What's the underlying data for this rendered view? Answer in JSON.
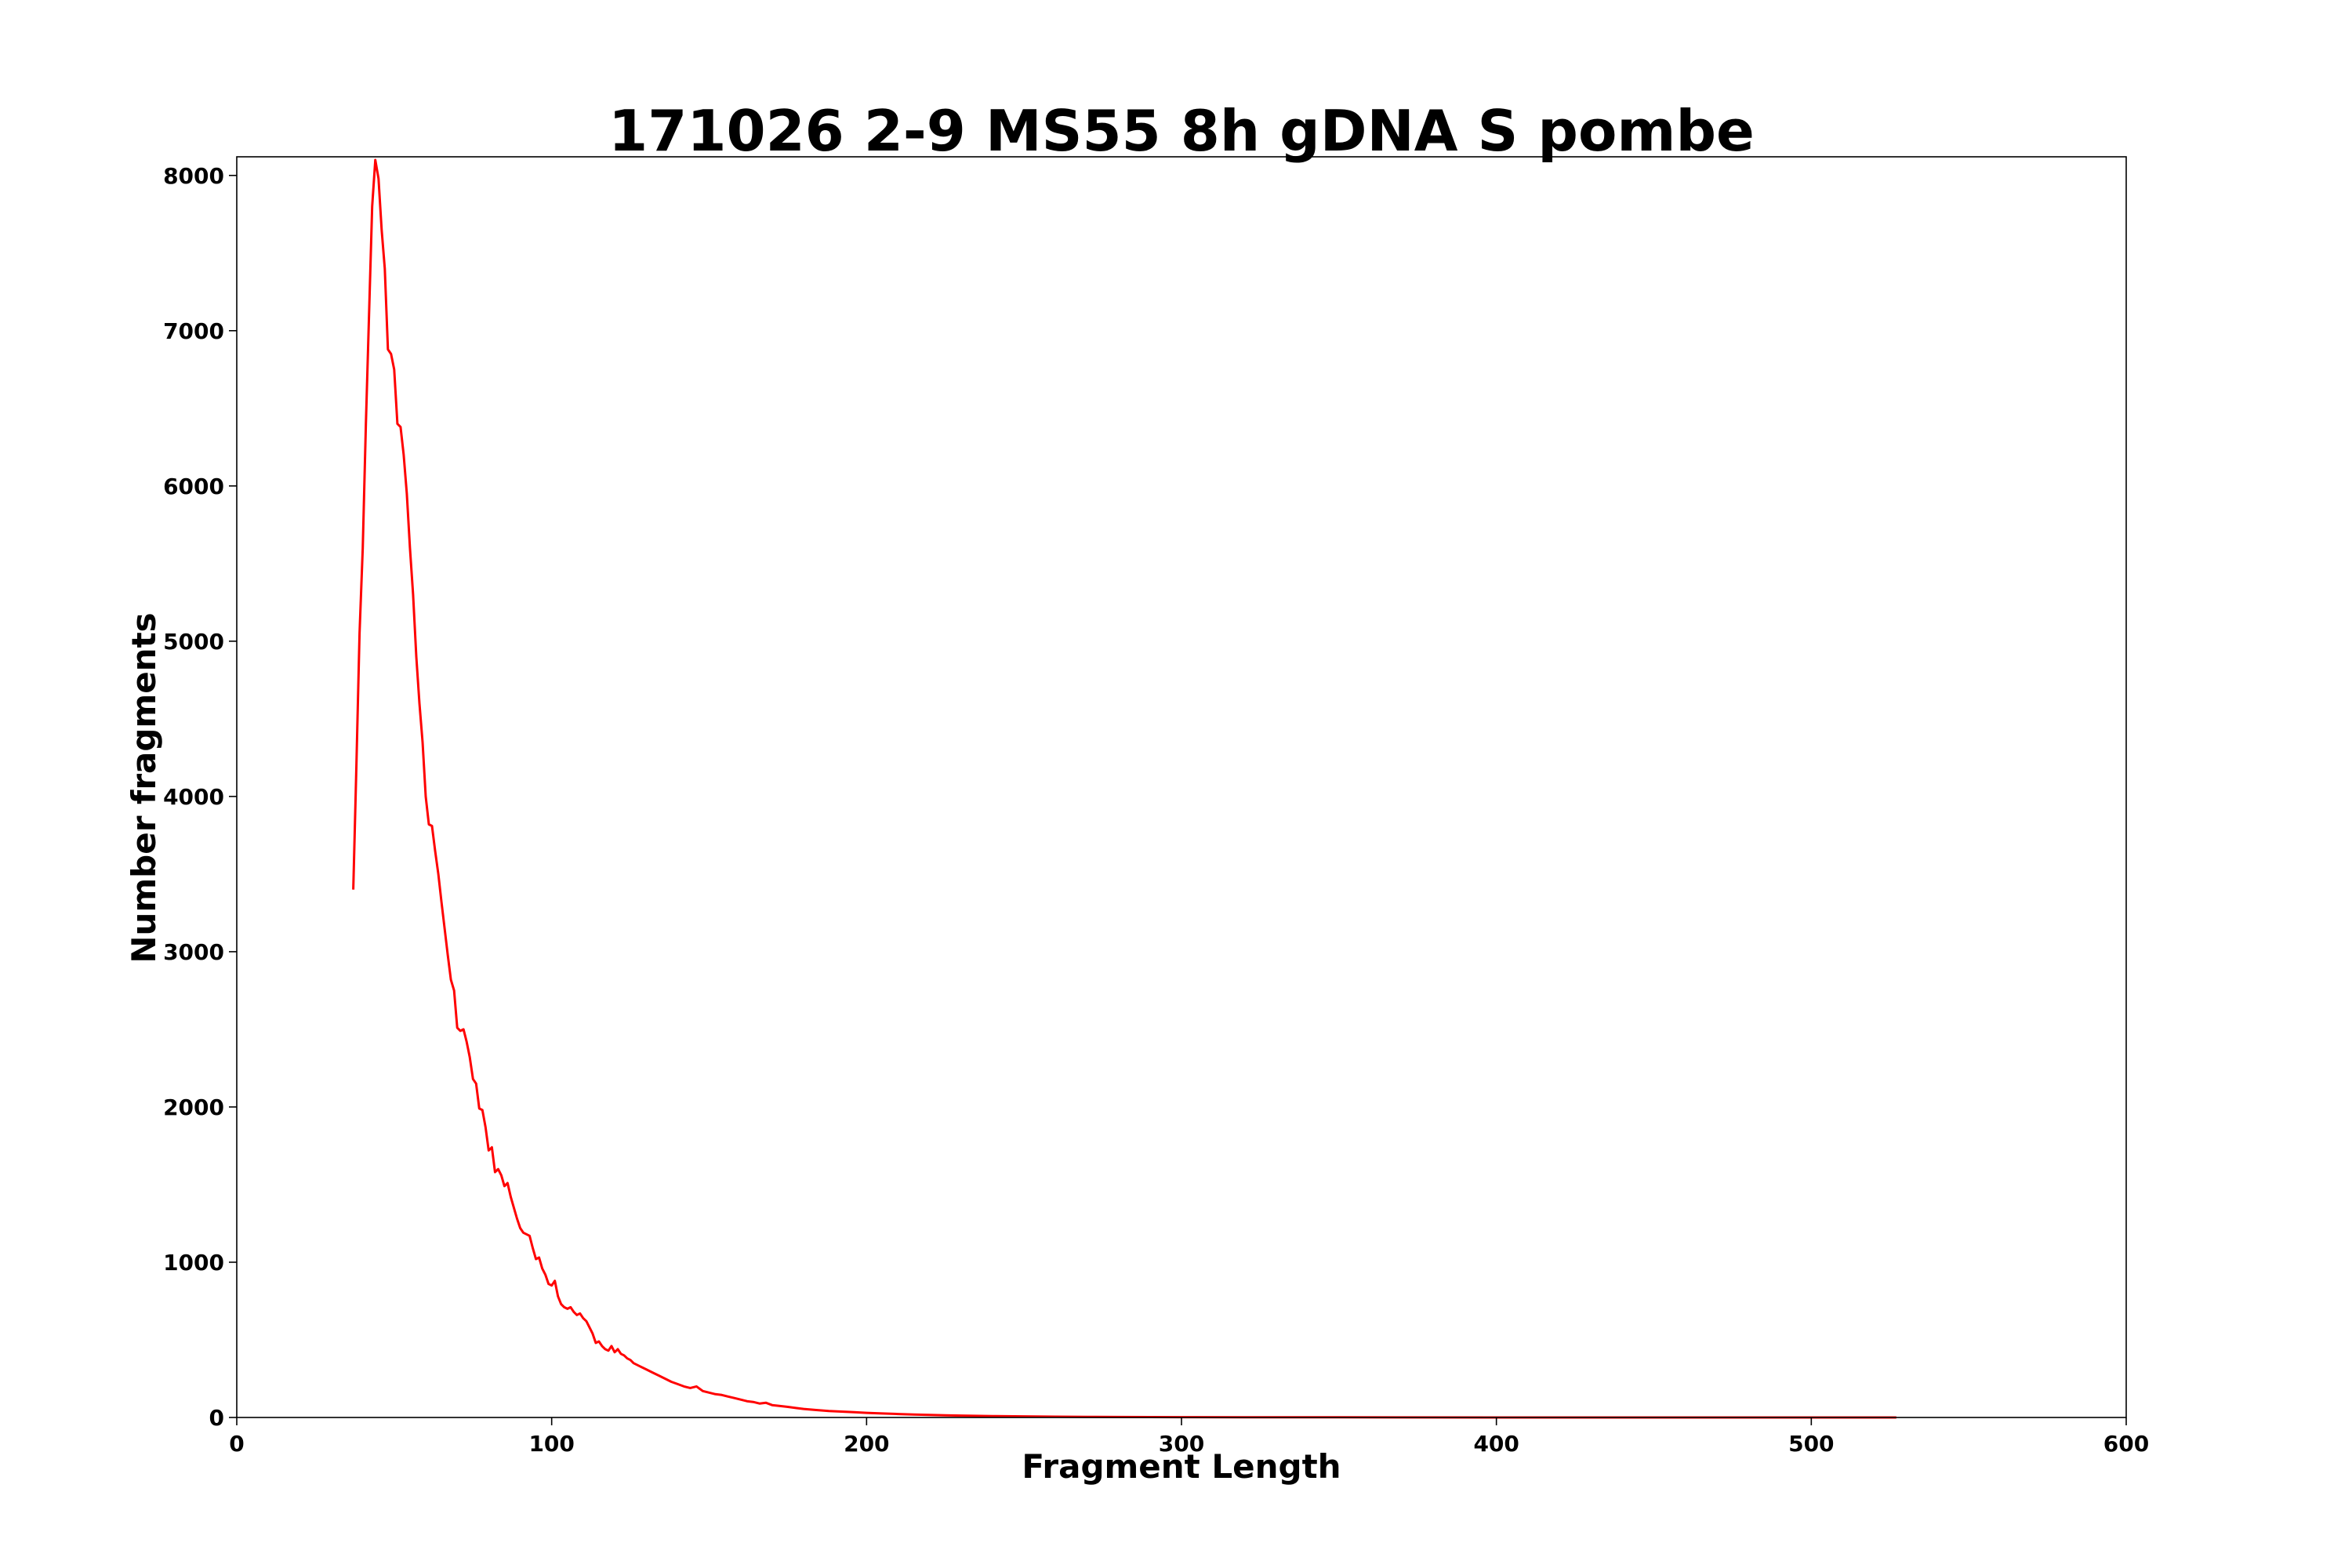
{
  "chart_data": {
    "type": "line",
    "title": "171026 2-9 MS55 8h gDNA S pombe",
    "xlabel": "Fragment Length",
    "ylabel": "Number fragments",
    "xlim": [
      0,
      600
    ],
    "ylim": [
      0,
      8120
    ],
    "xticks": [
      0,
      100,
      200,
      300,
      400,
      500,
      600
    ],
    "yticks": [
      0,
      1000,
      2000,
      3000,
      4000,
      5000,
      6000,
      7000,
      8000
    ],
    "grid": false,
    "legend": "none",
    "series": [
      {
        "color": "#ff0000",
        "points": [
          [
            37,
            3400
          ],
          [
            38,
            4200
          ],
          [
            39,
            5050
          ],
          [
            40,
            5600
          ],
          [
            41,
            6400
          ],
          [
            42,
            7100
          ],
          [
            43,
            7800
          ],
          [
            44,
            8100
          ],
          [
            45,
            7980
          ],
          [
            46,
            7650
          ],
          [
            47,
            7400
          ],
          [
            48,
            6880
          ],
          [
            49,
            6850
          ],
          [
            50,
            6750
          ],
          [
            51,
            6400
          ],
          [
            52,
            6380
          ],
          [
            53,
            6200
          ],
          [
            54,
            5950
          ],
          [
            55,
            5600
          ],
          [
            56,
            5300
          ],
          [
            57,
            4900
          ],
          [
            58,
            4600
          ],
          [
            59,
            4350
          ],
          [
            60,
            4000
          ],
          [
            61,
            3820
          ],
          [
            62,
            3810
          ],
          [
            63,
            3650
          ],
          [
            64,
            3500
          ],
          [
            65,
            3320
          ],
          [
            66,
            3150
          ],
          [
            67,
            2980
          ],
          [
            68,
            2820
          ],
          [
            69,
            2750
          ],
          [
            70,
            2510
          ],
          [
            71,
            2490
          ],
          [
            72,
            2500
          ],
          [
            73,
            2420
          ],
          [
            74,
            2320
          ],
          [
            75,
            2180
          ],
          [
            76,
            2150
          ],
          [
            77,
            1990
          ],
          [
            78,
            1980
          ],
          [
            79,
            1870
          ],
          [
            80,
            1720
          ],
          [
            81,
            1740
          ],
          [
            82,
            1580
          ],
          [
            83,
            1600
          ],
          [
            84,
            1560
          ],
          [
            85,
            1490
          ],
          [
            86,
            1510
          ],
          [
            87,
            1420
          ],
          [
            88,
            1350
          ],
          [
            89,
            1280
          ],
          [
            90,
            1220
          ],
          [
            91,
            1190
          ],
          [
            92,
            1180
          ],
          [
            93,
            1170
          ],
          [
            94,
            1090
          ],
          [
            95,
            1020
          ],
          [
            96,
            1030
          ],
          [
            97,
            960
          ],
          [
            98,
            920
          ],
          [
            99,
            860
          ],
          [
            100,
            850
          ],
          [
            101,
            880
          ],
          [
            102,
            780
          ],
          [
            103,
            730
          ],
          [
            104,
            710
          ],
          [
            105,
            700
          ],
          [
            106,
            710
          ],
          [
            107,
            680
          ],
          [
            108,
            660
          ],
          [
            109,
            670
          ],
          [
            110,
            640
          ],
          [
            111,
            620
          ],
          [
            112,
            580
          ],
          [
            113,
            540
          ],
          [
            114,
            480
          ],
          [
            115,
            490
          ],
          [
            116,
            460
          ],
          [
            117,
            440
          ],
          [
            118,
            430
          ],
          [
            119,
            460
          ],
          [
            120,
            420
          ],
          [
            121,
            440
          ],
          [
            122,
            410
          ],
          [
            123,
            400
          ],
          [
            124,
            380
          ],
          [
            125,
            370
          ],
          [
            126,
            350
          ],
          [
            127,
            340
          ],
          [
            128,
            330
          ],
          [
            129,
            320
          ],
          [
            130,
            310
          ],
          [
            132,
            290
          ],
          [
            134,
            270
          ],
          [
            136,
            250
          ],
          [
            138,
            230
          ],
          [
            140,
            215
          ],
          [
            142,
            200
          ],
          [
            144,
            190
          ],
          [
            146,
            200
          ],
          [
            148,
            170
          ],
          [
            150,
            160
          ],
          [
            152,
            150
          ],
          [
            154,
            145
          ],
          [
            156,
            135
          ],
          [
            158,
            125
          ],
          [
            160,
            115
          ],
          [
            162,
            105
          ],
          [
            164,
            100
          ],
          [
            166,
            90
          ],
          [
            168,
            95
          ],
          [
            170,
            80
          ],
          [
            172,
            75
          ],
          [
            175,
            68
          ],
          [
            178,
            60
          ],
          [
            180,
            55
          ],
          [
            184,
            48
          ],
          [
            188,
            42
          ],
          [
            192,
            38
          ],
          [
            196,
            34
          ],
          [
            200,
            30
          ],
          [
            205,
            26
          ],
          [
            210,
            22
          ],
          [
            215,
            19
          ],
          [
            220,
            16
          ],
          [
            225,
            14
          ],
          [
            230,
            12
          ],
          [
            240,
            9
          ],
          [
            250,
            7
          ],
          [
            260,
            5
          ],
          [
            270,
            4
          ],
          [
            280,
            3
          ],
          [
            300,
            2
          ],
          [
            320,
            1
          ],
          [
            350,
            1
          ],
          [
            400,
            0
          ],
          [
            450,
            0
          ],
          [
            500,
            0
          ],
          [
            527,
            0
          ]
        ]
      }
    ]
  }
}
